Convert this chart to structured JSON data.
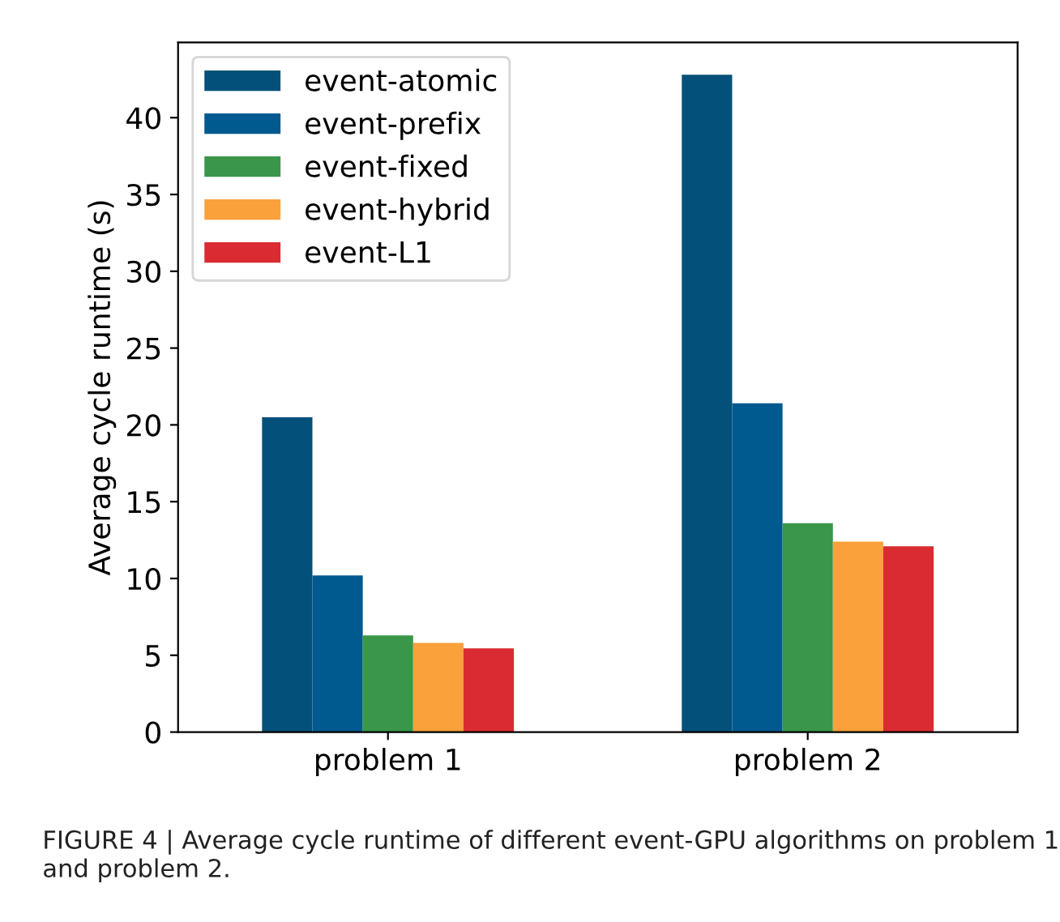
{
  "chart_data": {
    "type": "bar",
    "ylabel": "Average cycle runtime (s)",
    "categories": [
      "problem 1",
      "problem 2"
    ],
    "series": [
      {
        "name": "event-atomic",
        "color": "#03517a",
        "values": [
          20.5,
          42.8
        ]
      },
      {
        "name": "event-prefix",
        "color": "#00598f",
        "values": [
          10.2,
          21.4
        ]
      },
      {
        "name": "event-fixed",
        "color": "#3a9649",
        "values": [
          6.3,
          13.6
        ]
      },
      {
        "name": "event-hybrid",
        "color": "#fba13b",
        "values": [
          5.8,
          12.4
        ]
      },
      {
        "name": "event-L1",
        "color": "#d92b31",
        "values": [
          5.45,
          12.1
        ]
      }
    ],
    "ylim": [
      0,
      44.9
    ],
    "yticks": [
      0,
      5,
      10,
      15,
      20,
      25,
      30,
      35,
      40
    ],
    "grid": false,
    "legend": "top left",
    "annotations": [
      "FIGURE 4 | Average cycle runtime of different event-GPU algorithms on problem 1 and problem 2."
    ]
  }
}
